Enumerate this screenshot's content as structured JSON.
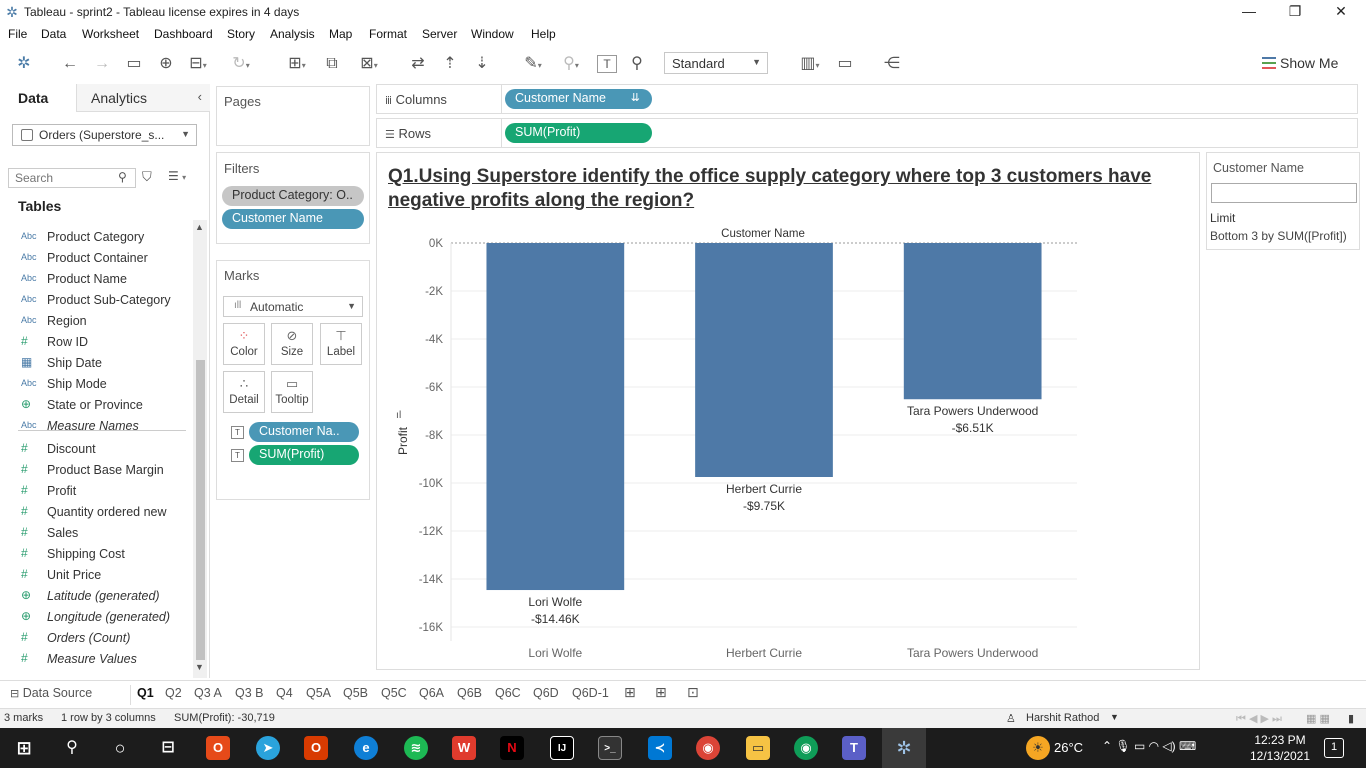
{
  "window": {
    "title": "Tableau - sprint2 - Tableau license expires in 4 days",
    "minimize_glyph": "—",
    "restore_glyph": "❐",
    "close_glyph": "✕"
  },
  "menu": [
    "File",
    "Data",
    "Worksheet",
    "Dashboard",
    "Story",
    "Analysis",
    "Map",
    "Format",
    "Server",
    "Window",
    "Help"
  ],
  "toolbar": {
    "fit_select": "Standard",
    "show_me": "Show Me"
  },
  "data_pane": {
    "tab_data": "Data",
    "tab_analytics": "Analytics",
    "datasource": "Orders (Superstore_s...",
    "search_placeholder": "Search",
    "tables_heading": "Tables",
    "dimensions": [
      {
        "type": "Abc",
        "name": "Product Category"
      },
      {
        "type": "Abc",
        "name": "Product Container"
      },
      {
        "type": "Abc",
        "name": "Product Name"
      },
      {
        "type": "Abc",
        "name": "Product Sub-Category"
      },
      {
        "type": "Abc",
        "name": "Region"
      },
      {
        "type": "#",
        "name": "Row ID"
      },
      {
        "type": "date",
        "name": "Ship Date"
      },
      {
        "type": "Abc",
        "name": "Ship Mode"
      },
      {
        "type": "geo",
        "name": "State or Province"
      },
      {
        "type": "Abc",
        "name": "Measure Names",
        "italic": true
      }
    ],
    "measures": [
      {
        "type": "#",
        "name": "Discount"
      },
      {
        "type": "#",
        "name": "Product Base Margin"
      },
      {
        "type": "#",
        "name": "Profit"
      },
      {
        "type": "#",
        "name": "Quantity ordered new"
      },
      {
        "type": "#",
        "name": "Sales"
      },
      {
        "type": "#",
        "name": "Shipping Cost"
      },
      {
        "type": "#",
        "name": "Unit Price"
      },
      {
        "type": "geo",
        "name": "Latitude (generated)",
        "italic": true
      },
      {
        "type": "geo",
        "name": "Longitude (generated)",
        "italic": true
      },
      {
        "type": "#",
        "name": "Orders (Count)",
        "italic": true
      },
      {
        "type": "#",
        "name": "Measure Values",
        "italic": true
      }
    ]
  },
  "pages_title": "Pages",
  "filters": {
    "title": "Filters",
    "pills": [
      "Product Category: O..",
      "Customer Name"
    ]
  },
  "marks": {
    "title": "Marks",
    "type_select": "Automatic",
    "buttons": [
      "Color",
      "Size",
      "Label",
      "Detail",
      "Tooltip"
    ],
    "pills": [
      "Customer Na..",
      "SUM(Profit)"
    ]
  },
  "shelves": {
    "columns_label": "Columns",
    "columns_pill": "Customer Name",
    "rows_label": "Rows",
    "rows_pill": "SUM(Profit)"
  },
  "legend": {
    "title": "Customer Name",
    "limit_label": "Limit",
    "limit_value": "Bottom 3 by SUM([Profit])"
  },
  "chart_data": {
    "type": "bar",
    "title": "Q1.Using Superstore identify the office supply category where top 3 customers have negative profits along the region?",
    "xlabel": "Customer Name",
    "ylabel": "Profit",
    "categories": [
      "Lori Wolfe",
      "Herbert Currie",
      "Tara Powers Underwood"
    ],
    "values": [
      -14460,
      -9750,
      -6510
    ],
    "data_labels": [
      "-$14.46K",
      "-$9.75K",
      "-$6.51K"
    ],
    "ylim": [
      -16000,
      0
    ],
    "yticks": [
      0,
      -2000,
      -4000,
      -6000,
      -8000,
      -10000,
      -12000,
      -14000,
      -16000
    ],
    "ytick_labels": [
      "0K",
      "-2K",
      "-4K",
      "-6K",
      "-8K",
      "-10K",
      "-12K",
      "-14K",
      "-16K"
    ],
    "bar_color": "#4e79a7",
    "grid": true
  },
  "sheet_tabs": {
    "data_source": "Data Source",
    "tabs": [
      "Q1",
      "Q2",
      "Q3 A",
      "Q3 B",
      "Q4",
      "Q5A",
      "Q5B",
      "Q5C",
      "Q6A",
      "Q6B",
      "Q6C",
      "Q6D",
      "Q6D-1"
    ],
    "active": "Q1"
  },
  "status": {
    "marks": "3 marks",
    "layout": "1 row by 3 columns",
    "sum": "SUM(Profit): -30,719",
    "user": "Harshit Rathod"
  },
  "taskbar": {
    "weather": "26°C",
    "time": "12:23 PM",
    "date": "12/13/2021",
    "notification_count": "1"
  }
}
